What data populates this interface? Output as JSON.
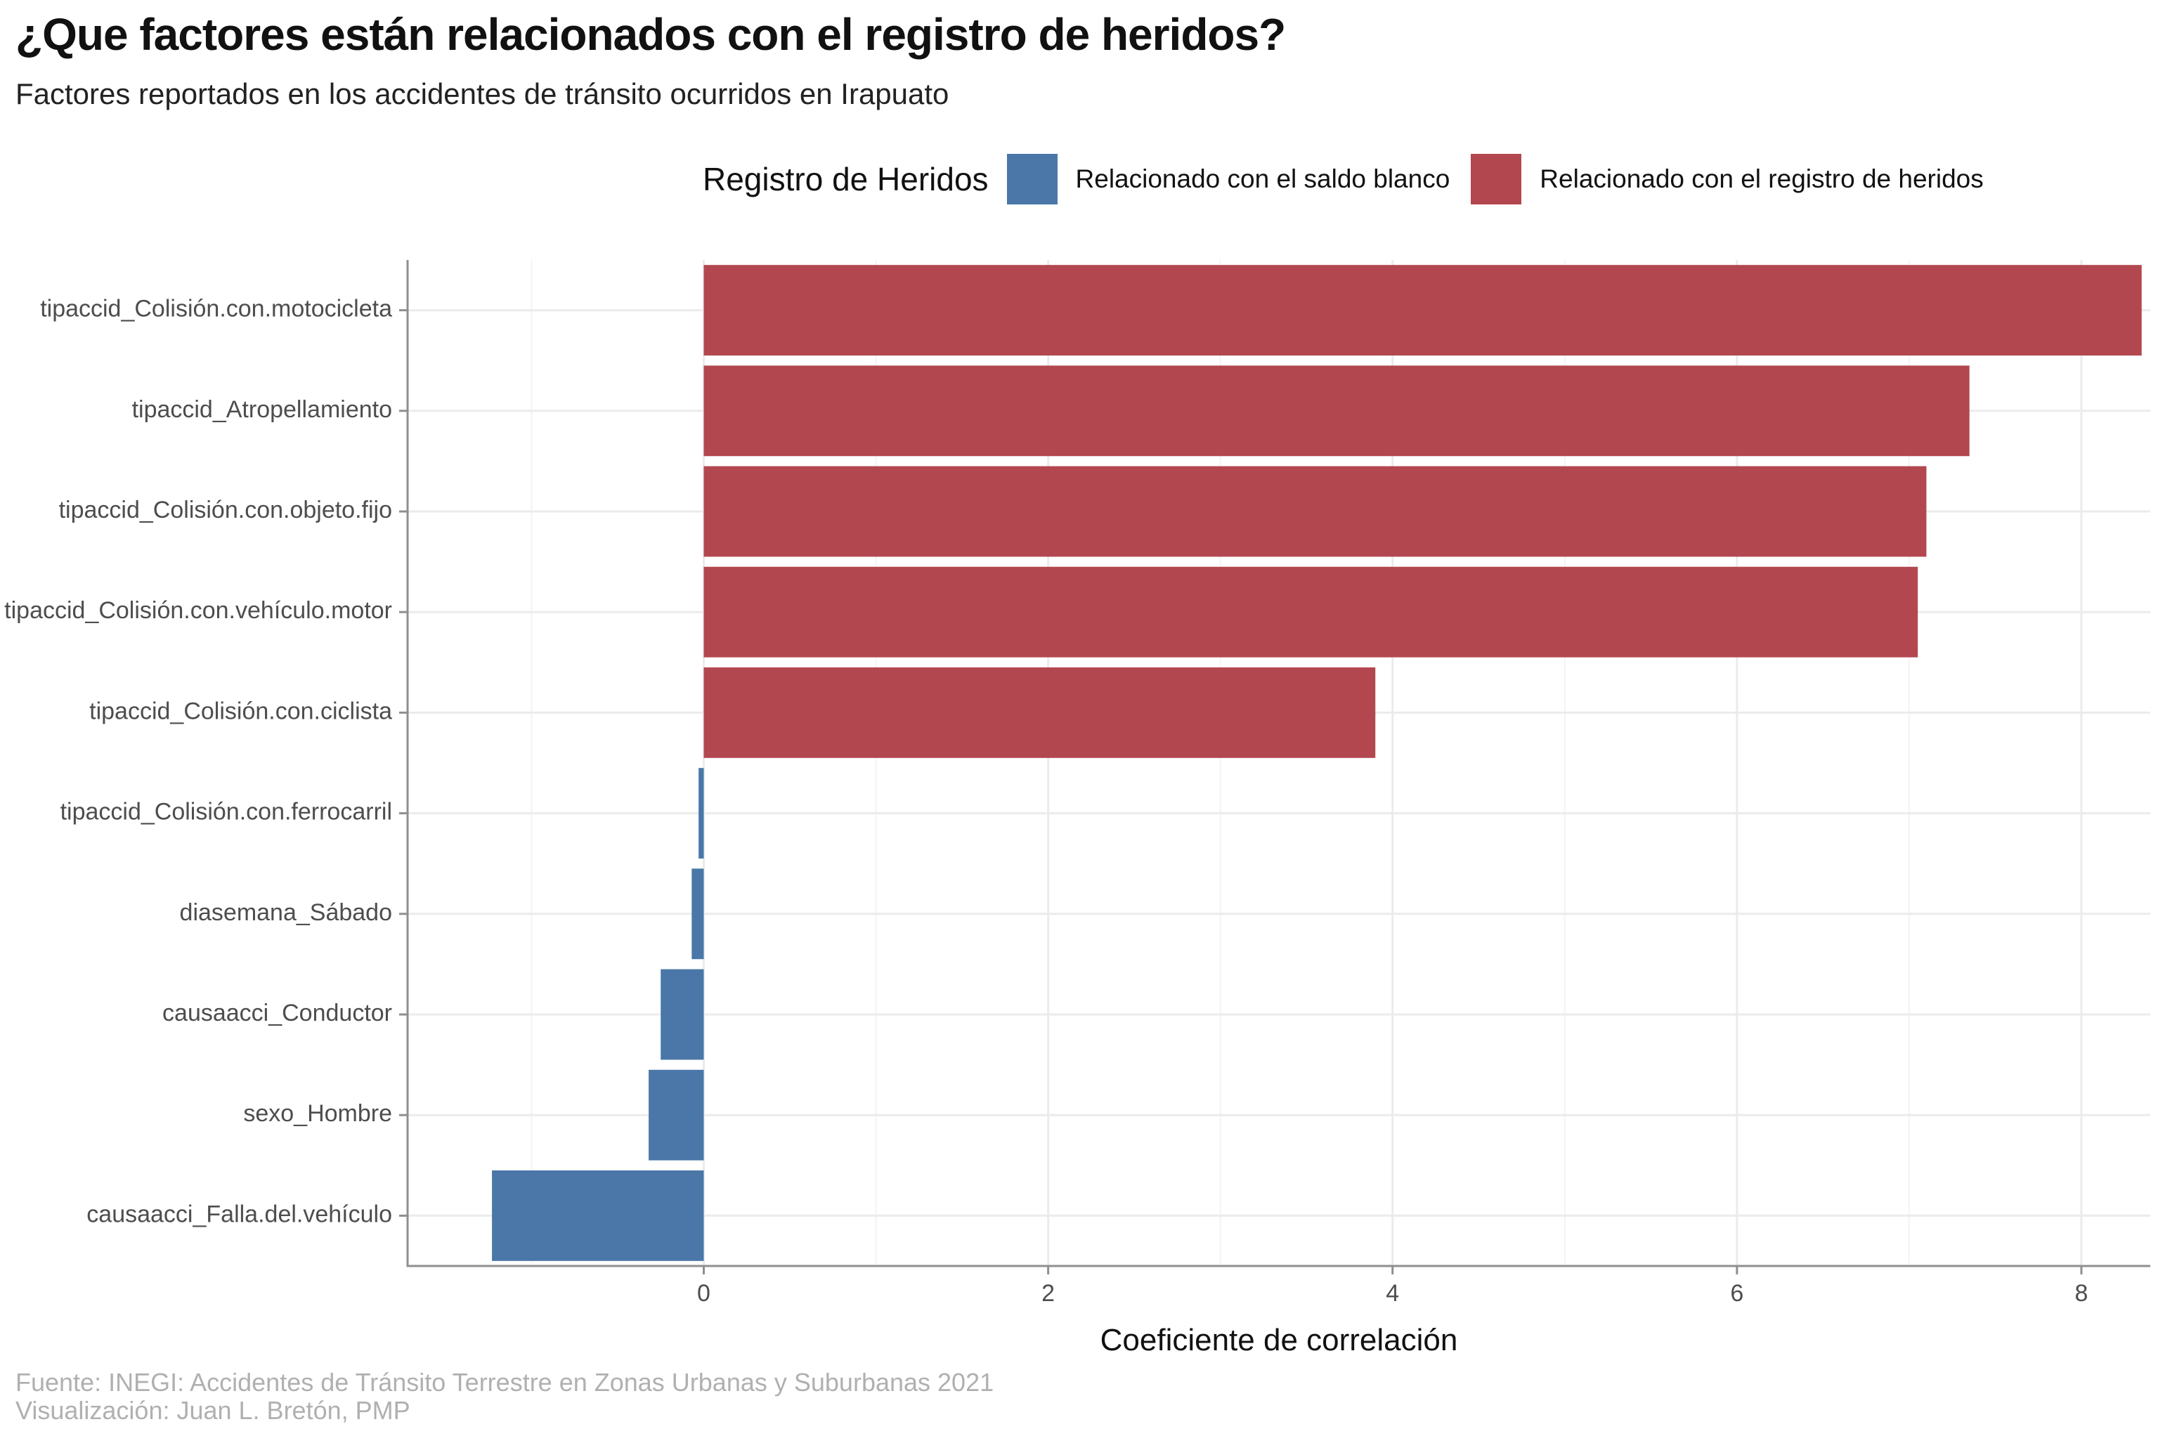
{
  "chart_data": {
    "type": "bar",
    "orientation": "horizontal",
    "title": "¿Que factores están relacionados con el registro de heridos?",
    "subtitle": "Factores reportados en los accidentes de tránsito ocurridos en Irapuato",
    "xlabel": "Coeficiente de correlación",
    "ylabel": "",
    "xlim": [
      -1.72,
      8.4
    ],
    "xticks": [
      0,
      2,
      4,
      6,
      8
    ],
    "grid": true,
    "legend_position": "top",
    "legend": {
      "title": "Registro de Heridos",
      "entries": [
        {
          "label": "Relacionado con el saldo blanco",
          "color": "#4a77a8"
        },
        {
          "label": "Relacionado con el registro de heridos",
          "color": "#b2474f"
        }
      ]
    },
    "categories": [
      "tipaccid_Colisión.con.motocicleta",
      "tipaccid_Atropellamiento",
      "tipaccid_Colisión.con.objeto.fijo",
      "tipaccid_Colisión.con.vehículo.motor",
      "tipaccid_Colisión.con.ciclista",
      "tipaccid_Colisión.con.ferrocarril",
      "diasemana_Sábado",
      "causaacci_Conductor",
      "sexo_Hombre",
      "causaacci_Falla.del.vehículo"
    ],
    "values": [
      8.35,
      7.35,
      7.1,
      7.05,
      3.9,
      -0.03,
      -0.07,
      -0.25,
      -0.32,
      -1.23
    ],
    "caption": [
      "Fuente: INEGI: Accidentes de Tránsito Terrestre en Zonas Urbanas y Suburbanas 2021",
      "Visualización: Juan L. Bretón, PMP"
    ]
  }
}
